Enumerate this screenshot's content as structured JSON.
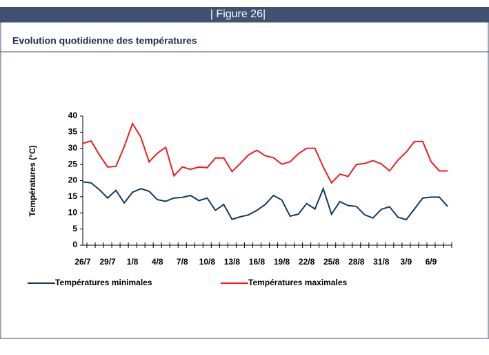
{
  "header": {
    "figure": "| Figure 26|",
    "title": "Evolution quotidienne des températures"
  },
  "chart_data": {
    "type": "line",
    "y_label": "Températures (°C)",
    "categories": [
      "26/7",
      null,
      null,
      "29/7",
      null,
      null,
      "1/8",
      null,
      null,
      "4/8",
      null,
      null,
      "7/8",
      null,
      null,
      "10/8",
      null,
      null,
      "13/8",
      null,
      null,
      "16/8",
      null,
      null,
      "19/8",
      null,
      null,
      "22/8",
      null,
      null,
      "25/8",
      null,
      null,
      "28/8",
      null,
      null,
      "31/8",
      null,
      null,
      "3/9",
      null,
      null,
      "6/9",
      null,
      null
    ],
    "series": [
      {
        "name": "Températures minimales",
        "color": "#12385f",
        "values": [
          19.6,
          19.3,
          17.2,
          14.6,
          17,
          13.1,
          16.4,
          17.5,
          16.7,
          14.1,
          13.6,
          14.6,
          14.8,
          15.4,
          13.8,
          14.6,
          10.8,
          12.6,
          8,
          8.8,
          9.4,
          10.8,
          12.6,
          15.4,
          14,
          9,
          9.6,
          12.9,
          11.2,
          17.5,
          9.6,
          13.5,
          12.3,
          12,
          9.4,
          8.4,
          11.1,
          11.9,
          8.7,
          7.9,
          11.2,
          14.6,
          14.9,
          14.9,
          12
        ]
      },
      {
        "name": "Températures maximales",
        "color": "#ee1c1c",
        "values": [
          31.5,
          32.3,
          28,
          24.2,
          24.4,
          30.5,
          37.7,
          33.5,
          25.8,
          28.5,
          30.3,
          21.5,
          24.2,
          23.5,
          24.2,
          24,
          27,
          27,
          22.8,
          25.3,
          28,
          29.4,
          27.7,
          27.1,
          25.1,
          25.8,
          28.3,
          30,
          30,
          24.2,
          19.3,
          22,
          21.3,
          25,
          25.3,
          26.2,
          25.2,
          23,
          26.3,
          28.8,
          32.1,
          32.1,
          25.9,
          23,
          23
        ]
      }
    ],
    "ylim": [
      0,
      40
    ],
    "yticks": [
      0,
      5,
      10,
      15,
      20,
      25,
      30,
      35,
      40
    ],
    "legend": "bottom"
  }
}
